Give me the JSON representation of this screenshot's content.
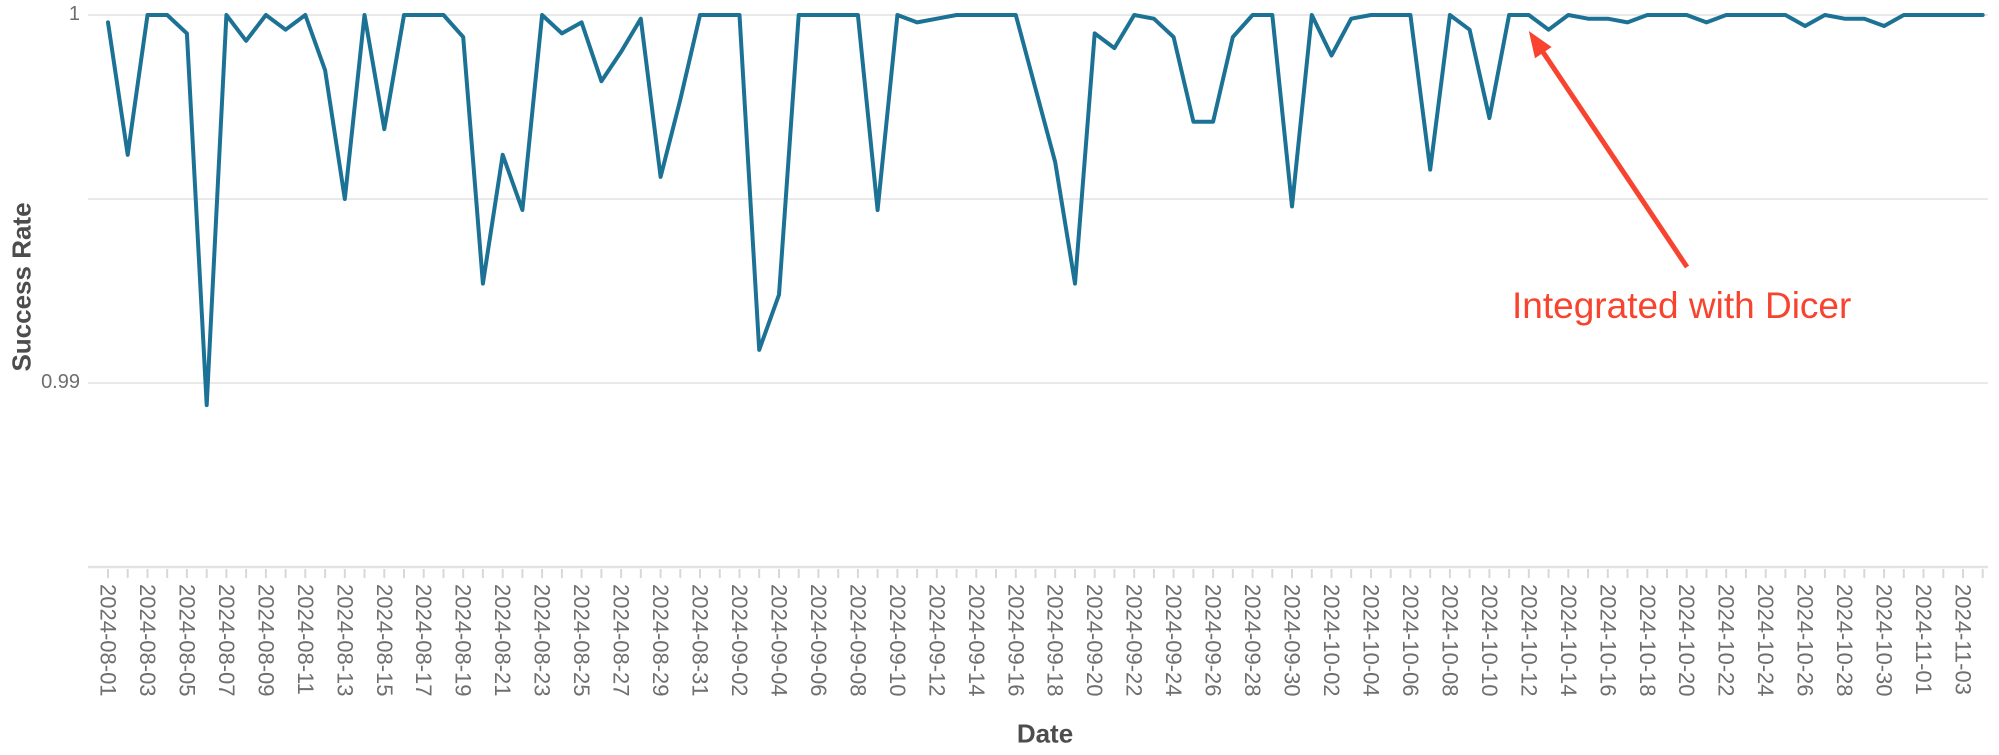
{
  "chart_data": {
    "type": "line",
    "title": "",
    "xlabel": "Date",
    "ylabel": "Success Rate",
    "ylim": [
      0.985,
      1.0
    ],
    "y_ticks": [
      {
        "value": 1,
        "label": "1"
      },
      {
        "value": 0.99,
        "label": "0.99"
      }
    ],
    "y_gridlines": [
      1,
      0.995,
      0.99
    ],
    "x_label_every": 2,
    "legend": "none",
    "grid": "horizontal",
    "line_color": "#1c7295",
    "grid_color": "#e9e9e9",
    "axis_color": "#e3e3e3",
    "tick_color": "#d8d8d8",
    "text_color": "#6e6e6e",
    "title_color": "#4d4d4d",
    "series": [
      {
        "name": "Success Rate",
        "dates": [
          "2024-08-01",
          "2024-08-02",
          "2024-08-03",
          "2024-08-04",
          "2024-08-05",
          "2024-08-06",
          "2024-08-07",
          "2024-08-08",
          "2024-08-09",
          "2024-08-10",
          "2024-08-11",
          "2024-08-12",
          "2024-08-13",
          "2024-08-14",
          "2024-08-15",
          "2024-08-16",
          "2024-08-17",
          "2024-08-18",
          "2024-08-19",
          "2024-08-20",
          "2024-08-21",
          "2024-08-22",
          "2024-08-23",
          "2024-08-24",
          "2024-08-25",
          "2024-08-26",
          "2024-08-27",
          "2024-08-28",
          "2024-08-29",
          "2024-08-30",
          "2024-08-31",
          "2024-09-01",
          "2024-09-02",
          "2024-09-03",
          "2024-09-04",
          "2024-09-05",
          "2024-09-06",
          "2024-09-07",
          "2024-09-08",
          "2024-09-09",
          "2024-09-10",
          "2024-09-11",
          "2024-09-12",
          "2024-09-13",
          "2024-09-14",
          "2024-09-15",
          "2024-09-16",
          "2024-09-17",
          "2024-09-18",
          "2024-09-19",
          "2024-09-20",
          "2024-09-21",
          "2024-09-22",
          "2024-09-23",
          "2024-09-24",
          "2024-09-25",
          "2024-09-26",
          "2024-09-27",
          "2024-09-28",
          "2024-09-29",
          "2024-09-30",
          "2024-10-01",
          "2024-10-02",
          "2024-10-03",
          "2024-10-04",
          "2024-10-05",
          "2024-10-06",
          "2024-10-07",
          "2024-10-08",
          "2024-10-09",
          "2024-10-10",
          "2024-10-11",
          "2024-10-12",
          "2024-10-13",
          "2024-10-14",
          "2024-10-15",
          "2024-10-16",
          "2024-10-17",
          "2024-10-18",
          "2024-10-19",
          "2024-10-20",
          "2024-10-21",
          "2024-10-22",
          "2024-10-23",
          "2024-10-24",
          "2024-10-25",
          "2024-10-26",
          "2024-10-27",
          "2024-10-28",
          "2024-10-29",
          "2024-10-30",
          "2024-10-31",
          "2024-11-01",
          "2024-11-02",
          "2024-11-03",
          "2024-11-04"
        ],
        "values": [
          0.9998,
          0.9962,
          1.0,
          1.0,
          0.9995,
          0.9894,
          1.0,
          0.9993,
          1.0,
          0.9996,
          1.0,
          0.9985,
          0.995,
          1.0,
          0.9969,
          1.0,
          1.0,
          1.0,
          0.9994,
          0.9927,
          0.9962,
          0.9947,
          1.0,
          0.9995,
          0.9998,
          0.9982,
          0.999,
          0.9999,
          0.9956,
          0.9977,
          1.0,
          1.0,
          1.0,
          0.9909,
          0.9924,
          1.0,
          1.0,
          1.0,
          1.0,
          0.9947,
          1.0,
          0.9998,
          0.9999,
          1.0,
          1.0,
          1.0,
          1.0,
          0.998,
          0.996,
          0.9927,
          0.9995,
          0.9991,
          1.0,
          0.9999,
          0.9994,
          0.9971,
          0.9971,
          0.9994,
          1.0,
          1.0,
          0.9948,
          1.0,
          0.9989,
          0.9999,
          1.0,
          1.0,
          1.0,
          0.9958,
          1.0,
          0.9996,
          0.9972,
          1.0,
          1.0,
          0.9996,
          1.0,
          0.9999,
          0.9999,
          0.9998,
          1.0,
          1.0,
          1.0,
          0.9998,
          1.0,
          1.0,
          1.0,
          1.0,
          0.9997,
          1.0,
          0.9999,
          0.9999,
          0.9997,
          1.0,
          1.0,
          1.0,
          1.0,
          1.0
        ]
      }
    ],
    "annotation": {
      "text": "Integrated with Dicer",
      "color": "#f8432e",
      "target_date": "2024-10-12"
    }
  }
}
